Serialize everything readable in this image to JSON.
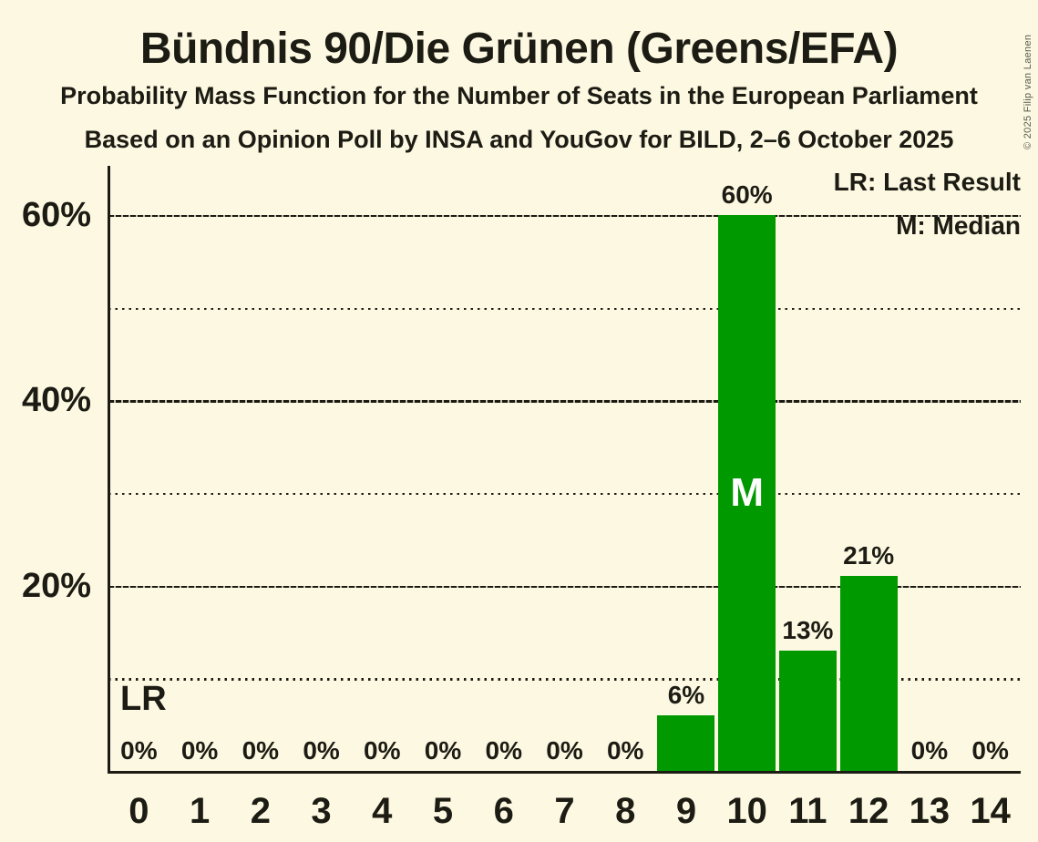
{
  "header": {
    "title": "Bündnis 90/Die Grünen (Greens/EFA)",
    "subtitle1": "Probability Mass Function for the Number of Seats in the European Parliament",
    "subtitle2": "Based on an Opinion Poll by INSA and YouGov for BILD, 2–6 October 2025"
  },
  "copyright": "© 2025 Filip van Laenen",
  "legend": {
    "last_result": "LR: Last Result",
    "median": "M: Median"
  },
  "annotations": {
    "last_result_label": "LR",
    "median_label": "M"
  },
  "colors": {
    "background": "#FDF8E1",
    "bar": "#009900",
    "text": "#1C1C14"
  },
  "chart_data": {
    "type": "bar",
    "title": "Bündnis 90/Die Grünen (Greens/EFA)",
    "categories": [
      "0",
      "1",
      "2",
      "3",
      "4",
      "5",
      "6",
      "7",
      "8",
      "9",
      "10",
      "11",
      "12",
      "13",
      "14"
    ],
    "values": [
      0,
      0,
      0,
      0,
      0,
      0,
      0,
      0,
      0,
      6,
      60,
      13,
      21,
      0,
      0
    ],
    "bar_labels": [
      "0%",
      "0%",
      "0%",
      "0%",
      "0%",
      "0%",
      "0%",
      "0%",
      "0%",
      "6%",
      "60%",
      "13%",
      "21%",
      "0%",
      "0%"
    ],
    "xlabel": "",
    "ylabel": "",
    "ylim": [
      0,
      65.3
    ],
    "y_ticks": [
      {
        "value": 20,
        "label": "20%"
      },
      {
        "value": 40,
        "label": "40%"
      },
      {
        "value": 60,
        "label": "60%"
      }
    ],
    "major_gridlines": [
      20,
      40,
      60
    ],
    "minor_gridlines": [
      10,
      30,
      50
    ],
    "median_index": 10,
    "bar_color": "#009900",
    "grid": "horizontal",
    "legend_position": "top-right"
  }
}
